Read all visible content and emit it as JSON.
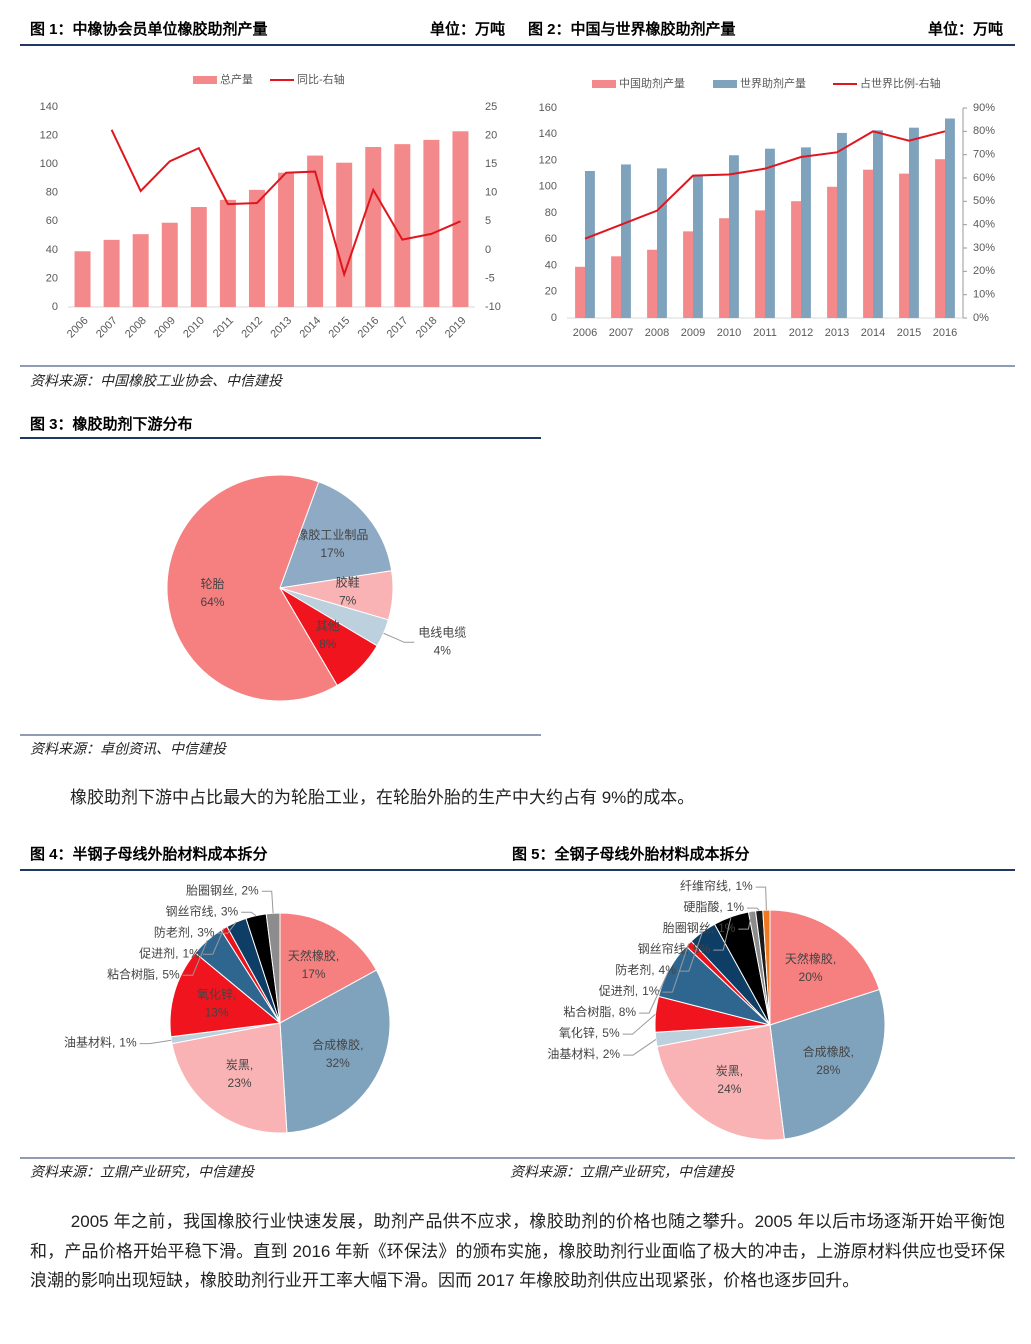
{
  "chart_data": [
    {
      "type": "bar",
      "title": "图 1：中橡协会员单位橡胶助剂产量",
      "unit": "单位：万吨",
      "categories": [
        "2006",
        "2007",
        "2008",
        "2009",
        "2010",
        "2011",
        "2012",
        "2013",
        "2014",
        "2015",
        "2016",
        "2017",
        "2018",
        "2019"
      ],
      "series": [
        {
          "name": "总产量",
          "type": "bar",
          "color": "#f4898b",
          "values": [
            39,
            47,
            51,
            59,
            70,
            75,
            82,
            94,
            106,
            101,
            112,
            114,
            117,
            123
          ]
        },
        {
          "name": "同比-右轴",
          "type": "line",
          "axis": "y2",
          "color": "#e0161e",
          "values": [
            null,
            21,
            10.3,
            15.5,
            17.8,
            8,
            8.2,
            13.5,
            13.7,
            -4.3,
            10.5,
            1.8,
            2.8,
            5
          ]
        }
      ],
      "ylim": [
        0,
        140
      ],
      "yticks": [
        0,
        20,
        40,
        60,
        80,
        100,
        120,
        140
      ],
      "y2lim": [
        -10,
        25
      ],
      "y2ticks": [
        -10,
        -5,
        0,
        5,
        10,
        15,
        20,
        25
      ]
    },
    {
      "type": "bar",
      "title": "图 2：中国与世界橡胶助剂产量",
      "unit": "单位：万吨",
      "categories": [
        "2006",
        "2007",
        "2008",
        "2009",
        "2010",
        "2011",
        "2012",
        "2013",
        "2014",
        "2015",
        "2016"
      ],
      "series": [
        {
          "name": "中国助剂产量",
          "type": "bar",
          "color": "#f4898b",
          "values": [
            39,
            47,
            52,
            66,
            76,
            82,
            89,
            100,
            113,
            110,
            121
          ]
        },
        {
          "name": "世界助剂产量",
          "type": "bar",
          "color": "#7fa3bd",
          "values": [
            112,
            117,
            114,
            109,
            124,
            129,
            130,
            141,
            143,
            145,
            152
          ]
        },
        {
          "name": "占世界比例-右轴",
          "type": "line",
          "axis": "y2",
          "color": "#e0161e",
          "values": [
            34,
            40,
            46,
            61,
            61.5,
            64,
            69,
            71,
            80,
            76,
            80
          ]
        }
      ],
      "ylim": [
        0,
        160
      ],
      "yticks": [
        0,
        20,
        40,
        60,
        80,
        100,
        120,
        140,
        160
      ],
      "y2lim": [
        0,
        90
      ],
      "y2ticks": [
        {
          "value": 0,
          "label": "0%"
        },
        {
          "value": 10,
          "label": "10%"
        },
        {
          "value": 20,
          "label": "20%"
        },
        {
          "value": 30,
          "label": "30%"
        },
        {
          "value": 40,
          "label": "40%"
        },
        {
          "value": 50,
          "label": "50%"
        },
        {
          "value": 60,
          "label": "60%"
        },
        {
          "value": 70,
          "label": "70%"
        },
        {
          "value": 80,
          "label": "80%"
        },
        {
          "value": 90,
          "label": "90%"
        }
      ]
    },
    {
      "type": "pie",
      "title": "图 3：橡胶助剂下游分布",
      "categories": [
        "橡胶工业制品",
        "胶鞋",
        "电线电缆",
        "其他",
        "轮胎"
      ],
      "values": [
        17,
        7,
        4,
        8,
        64
      ],
      "value_labels": [
        "17%",
        "7%",
        "4%",
        "8%",
        "64%"
      ],
      "colors": [
        "#8eaac4",
        "#f9b3b5",
        "#bcd0dd",
        "#f0141e",
        "#f67f7f"
      ]
    },
    {
      "type": "pie",
      "title": "图 4：半钢子母线外胎材料成本拆分",
      "categories": [
        "天然橡胶,",
        "合成橡胶,",
        "炭黑,",
        "油基材料,",
        "氧化锌,",
        "粘合树脂,",
        "促进剂,",
        "防老剂,",
        "钢丝帘线,",
        "胎圈钢丝,"
      ],
      "values": [
        17,
        32,
        23,
        1,
        13,
        5,
        1,
        3,
        3,
        2
      ],
      "value_labels": [
        "17%",
        "32%",
        "23%",
        "1%",
        "13%",
        "5%",
        "1%",
        "3%",
        "3%",
        "2%"
      ],
      "colors": [
        "#f67f7f",
        "#7fa3bd",
        "#f9b3b5",
        "#bcd0dd",
        "#f0141e",
        "#2f6690",
        "#e8131b",
        "#0e3d66",
        "#000000",
        "#8c8c8c"
      ]
    },
    {
      "type": "pie",
      "title": "图 5：全钢子母线外胎材料成本拆分",
      "categories": [
        "天然橡胶,",
        "合成橡胶,",
        "炭黑,",
        "油基材料,",
        "氧化锌,",
        "粘合树脂,",
        "促进剂,",
        "防老剂,",
        "钢丝帘线,",
        "胎圈钢丝,",
        "硬脂酸,",
        "纤维帘线,"
      ],
      "values": [
        20,
        28,
        24,
        2,
        5,
        8,
        1,
        4,
        5,
        1,
        1,
        1
      ],
      "value_labels": [
        "20%",
        "28%",
        "24%",
        "2%",
        "5%",
        "8%",
        "1%",
        "4%",
        "5%",
        "1%",
        "1%",
        "1%"
      ],
      "colors": [
        "#f67f7f",
        "#7fa3bd",
        "#f9b3b5",
        "#bcd0dd",
        "#f0141e",
        "#2f6690",
        "#e8131b",
        "#0e3d66",
        "#000000",
        "#8c8c8c",
        "#1a1a1a",
        "#f07820"
      ]
    }
  ],
  "sources": [
    "资料来源：中国橡胶工业协会、中信建投",
    "资料来源：卓创资讯、中信建投",
    "资料来源：立鼎产业研究，中信建投",
    "资料来源：立鼎产业研究，中信建投"
  ],
  "paragraphs": [
    "橡胶助剂下游中占比最大的为轮胎工业，在轮胎外胎的生产中大约占有 9%的成本。",
    "2005 年之前，我国橡胶行业快速发展，助剂产品供不应求，橡胶助剂的价格也随之攀升。2005 年以后市场逐渐开始平衡饱和，产品价格开始平稳下滑。直到 2016 年新《环保法》的颁布实施，橡胶助剂行业面临了极大的冲击，上游原材料供应也受环保浪潮的影响出现短缺，橡胶助剂行业开工率大幅下滑。因而 2017 年橡胶助剂供应出现紧张，价格也逐步回升。"
  ]
}
